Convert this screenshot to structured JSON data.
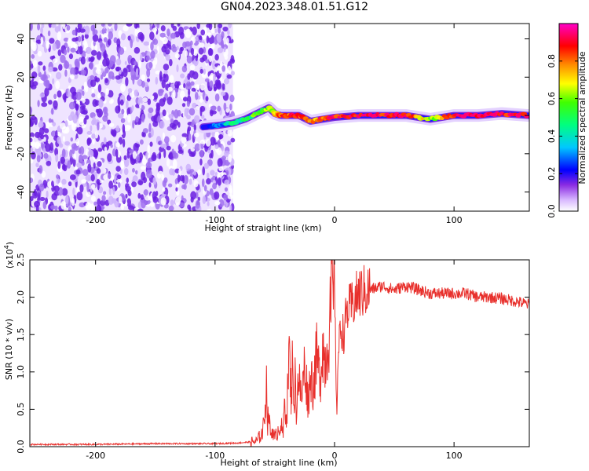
{
  "title": "GN04.2023.348.01.51.G12",
  "colors": {
    "snr_line": "#e8302c",
    "scatter_purple": "#7a2ee0",
    "background": "#ffffff"
  },
  "chart_data": [
    {
      "type": "heatmap",
      "title": "",
      "xlabel": "Height of straight line (km)",
      "ylabel": "Frequency (Hz)",
      "xlim": [
        -255,
        163
      ],
      "ylim": [
        -50,
        48
      ],
      "x_ticks": [
        -200,
        -100,
        0,
        100
      ],
      "y_ticks": [
        -40,
        -20,
        0,
        20,
        40
      ],
      "x_tick_labels": [
        "-200",
        "-100",
        "0",
        "100"
      ],
      "y_tick_labels": [
        "-40",
        "-20",
        "0",
        "20",
        "40"
      ],
      "colorbar": {
        "label": "Normalized spectral amplitude",
        "range": [
          0,
          1
        ],
        "ticks": [
          0.0,
          0.2,
          0.4,
          0.6,
          0.8
        ],
        "tick_labels": [
          "0.0",
          "0.2",
          "0.4",
          "0.6",
          "0.8"
        ],
        "colormap": "rainbow"
      },
      "features": {
        "noise_region_x": [
          -255,
          -85
        ],
        "signal_trace": {
          "x": [
            -110,
            -95,
            -85,
            -75,
            -65,
            -55,
            -50,
            -45,
            -40,
            -30,
            -20,
            -10,
            0,
            20,
            40,
            60,
            80,
            100,
            120,
            140,
            163
          ],
          "frequency": [
            -6,
            -5,
            -4,
            -2,
            1,
            4,
            1,
            0,
            0,
            0,
            -3,
            -2,
            -1,
            0,
            0,
            0,
            -2,
            0,
            0,
            1,
            0
          ],
          "amplitude": [
            0.2,
            0.3,
            0.4,
            0.5,
            0.55,
            0.6,
            0.7,
            0.8,
            0.85,
            0.9,
            0.75,
            0.85,
            0.9,
            0.92,
            0.9,
            0.9,
            0.6,
            0.9,
            0.92,
            0.9,
            0.9
          ]
        }
      }
    },
    {
      "type": "line",
      "title": "",
      "xlabel": "Height of straight line (km)",
      "ylabel": "SNR (10 * v/v)",
      "y_multiplier_label": "(x10",
      "y_multiplier_exp": "4",
      "y_multiplier_close": ")",
      "xlim": [
        -255,
        163
      ],
      "ylim": [
        0,
        2.5
      ],
      "x_ticks": [
        -200,
        -100,
        0,
        100
      ],
      "y_ticks": [
        0.0,
        0.5,
        1.0,
        1.5,
        2.0,
        2.5
      ],
      "x_tick_labels": [
        "-200",
        "-100",
        "0",
        "100"
      ],
      "y_tick_labels": [
        "0.0",
        "0.5",
        "1.0",
        "1.5",
        "2.0",
        "2.5"
      ],
      "series": [
        {
          "x": [
            -255,
            -200,
            -150,
            -100,
            -80,
            -65,
            -60,
            -58,
            -57,
            -56,
            -55,
            -54,
            -53,
            -52,
            -50,
            -48,
            -45,
            -43,
            -42,
            -40,
            -38,
            -37,
            -36,
            -35,
            -34,
            -33,
            -32,
            -30,
            -28,
            -25,
            -22,
            -20,
            -18,
            -15,
            -12,
            -10,
            -8,
            -5,
            -3,
            -2,
            -1,
            0,
            1,
            2,
            3,
            5,
            8,
            10,
            15,
            20,
            30,
            40,
            50,
            60,
            70,
            80,
            90,
            100,
            110,
            120,
            130,
            140,
            150,
            163
          ],
          "values": [
            0.03,
            0.03,
            0.04,
            0.04,
            0.05,
            0.07,
            0.2,
            0.55,
            0.84,
            0.3,
            0.5,
            0.22,
            0.15,
            0.25,
            0.1,
            0.2,
            0.3,
            0.15,
            0.6,
            0.4,
            1.3,
            0.9,
            0.6,
            1.52,
            0.4,
            0.9,
            0.5,
            1.0,
            0.6,
            1.1,
            0.6,
            1.0,
            0.8,
            1.2,
            0.9,
            1.4,
            1.1,
            1.5,
            1.8,
            2.3,
            1.9,
            2.5,
            1.0,
            0.5,
            1.2,
            1.6,
            1.5,
            1.8,
            1.9,
            2.05,
            2.1,
            2.15,
            2.1,
            2.15,
            2.1,
            2.05,
            2.05,
            2.05,
            2.05,
            2.0,
            2.0,
            1.98,
            1.95,
            1.9
          ]
        }
      ]
    }
  ]
}
